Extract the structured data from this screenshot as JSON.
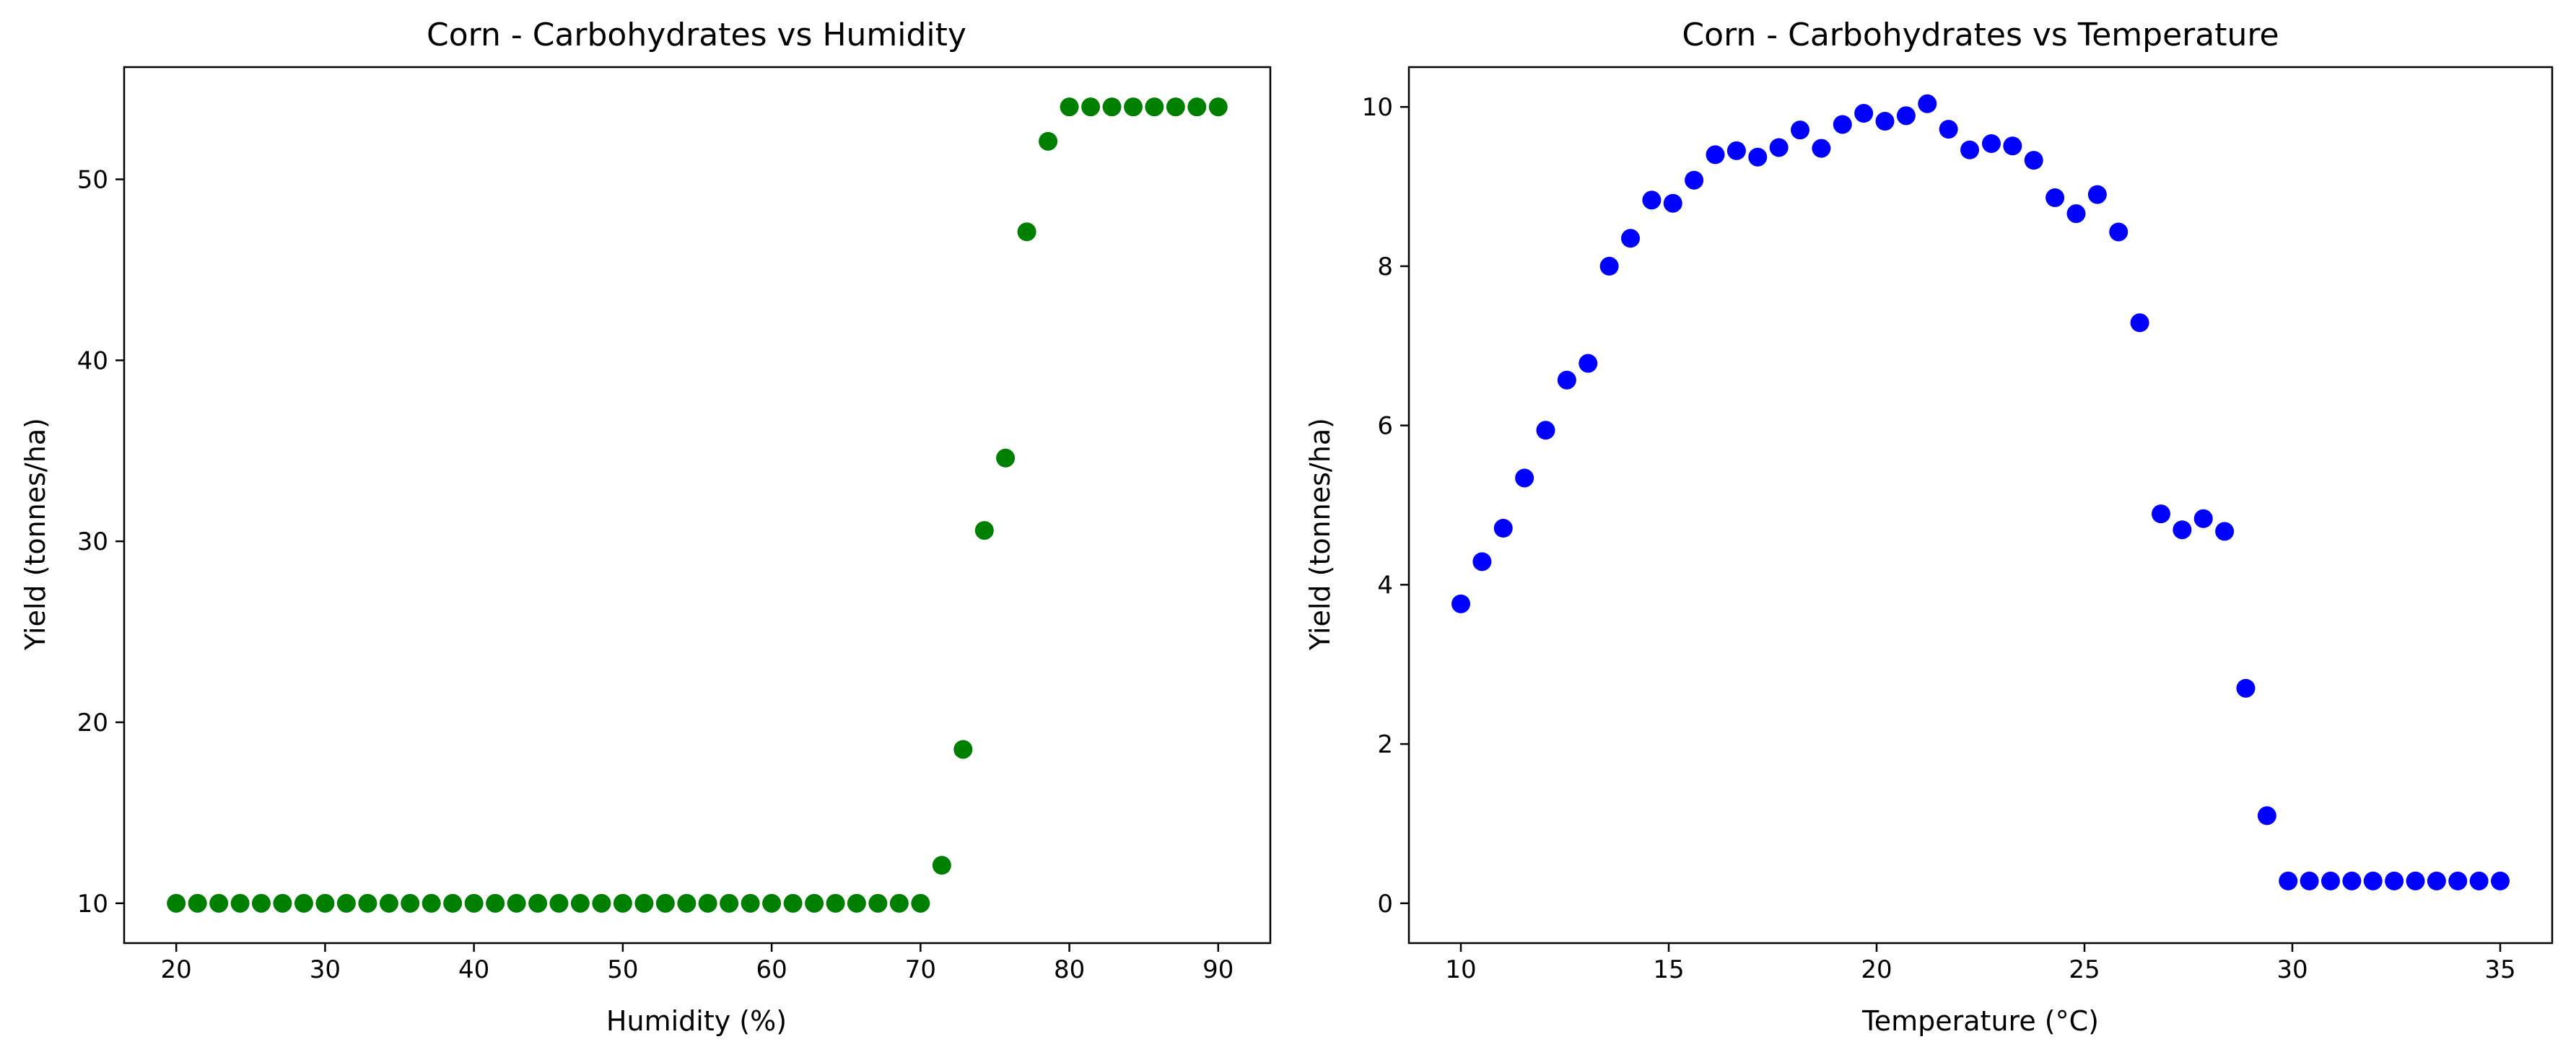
{
  "chart_data": [
    {
      "type": "scatter",
      "title": "Corn - Carbohydrates vs Humidity",
      "xlabel": "Humidity (%)",
      "ylabel": "Yield (tonnes/ha)",
      "xlim": [
        16.5,
        93.5
      ],
      "ylim": [
        7.8,
        56.2
      ],
      "xticks": [
        20,
        30,
        40,
        50,
        60,
        70,
        80,
        90
      ],
      "yticks": [
        10,
        20,
        30,
        40,
        50
      ],
      "grid": false,
      "color": "#008000",
      "x": [
        20.0,
        21.43,
        22.86,
        24.29,
        25.71,
        27.14,
        28.57,
        30.0,
        31.43,
        32.86,
        34.29,
        35.71,
        37.14,
        38.57,
        40.0,
        41.43,
        42.86,
        44.29,
        45.71,
        47.14,
        48.57,
        50.0,
        51.43,
        52.86,
        54.29,
        55.71,
        57.14,
        58.57,
        60.0,
        61.43,
        62.86,
        64.29,
        65.71,
        67.14,
        68.57,
        70.0,
        71.43,
        72.86,
        74.29,
        75.71,
        77.14,
        78.57,
        80.0,
        81.43,
        82.86,
        84.29,
        85.71,
        87.14,
        88.57,
        90.0
      ],
      "y": [
        10,
        10,
        10,
        10,
        10,
        10,
        10,
        10,
        10,
        10,
        10,
        10,
        10,
        10,
        10,
        10,
        10,
        10,
        10,
        10,
        10,
        10,
        10,
        10,
        10,
        10,
        10,
        10,
        10,
        10,
        10,
        10,
        10,
        10,
        10,
        10,
        12.1,
        18.5,
        30.6,
        34.6,
        47.1,
        52.1,
        54,
        54,
        54,
        54,
        54,
        54,
        54,
        54
      ]
    },
    {
      "type": "scatter",
      "title": "Corn - Carbohydrates vs Temperature",
      "xlabel": "Temperature (°C)",
      "ylabel": "Yield (tonnes/ha)",
      "xlim": [
        8.75,
        36.25
      ],
      "ylim": [
        -0.5,
        10.5
      ],
      "xticks": [
        10,
        15,
        20,
        25,
        30,
        35
      ],
      "yticks": [
        0,
        2,
        4,
        6,
        8,
        10
      ],
      "grid": false,
      "color": "#0000ff",
      "x": [
        10.0,
        10.51,
        11.02,
        11.53,
        12.04,
        12.55,
        13.06,
        13.57,
        14.08,
        14.59,
        15.1,
        15.61,
        16.12,
        16.63,
        17.14,
        17.65,
        18.16,
        18.67,
        19.18,
        19.69,
        20.2,
        20.71,
        21.22,
        21.73,
        22.24,
        22.76,
        23.27,
        23.78,
        24.29,
        24.8,
        25.31,
        25.82,
        26.33,
        26.84,
        27.35,
        27.86,
        28.37,
        28.88,
        29.39,
        29.9,
        30.41,
        30.92,
        31.43,
        31.94,
        32.45,
        32.96,
        33.47,
        33.98,
        34.49,
        35.0
      ],
      "y": [
        3.76,
        4.29,
        4.71,
        5.34,
        5.94,
        6.57,
        6.78,
        8.0,
        8.35,
        8.83,
        8.79,
        9.08,
        9.4,
        9.45,
        9.37,
        9.49,
        9.71,
        9.48,
        9.78,
        9.92,
        9.82,
        9.89,
        10.04,
        9.72,
        9.46,
        9.54,
        9.51,
        9.33,
        8.86,
        8.66,
        8.9,
        8.43,
        7.29,
        4.89,
        4.69,
        4.83,
        4.67,
        2.7,
        1.1,
        0.28,
        0.28,
        0.28,
        0.28,
        0.28,
        0.28,
        0.28,
        0.28,
        0.28,
        0.28,
        0.28
      ]
    }
  ]
}
